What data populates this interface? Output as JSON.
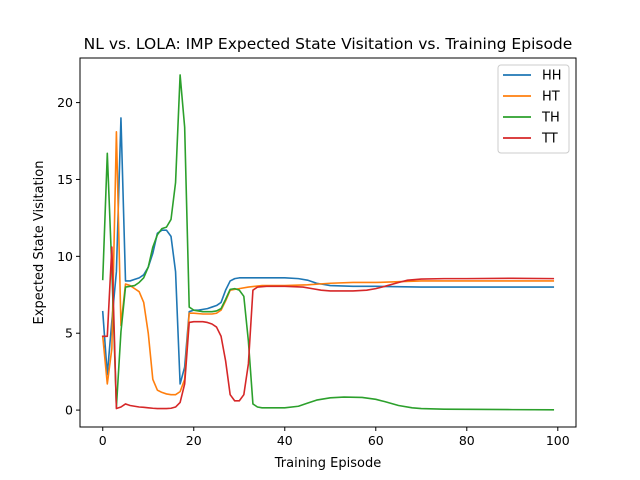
{
  "chart_data": {
    "type": "line",
    "title": "NL vs. LOLA: IMP Expected State Visitation vs. Training Episode",
    "xlabel": "Training Episode",
    "ylabel": "Expected State Visitation",
    "xlim": [
      -5,
      104
    ],
    "ylim": [
      -1.1,
      22.9
    ],
    "xticks": [
      0,
      20,
      40,
      60,
      80,
      100
    ],
    "yticks": [
      0,
      5,
      10,
      15,
      20
    ],
    "grid": false,
    "legend_position": "top-right",
    "series": [
      {
        "name": "HH",
        "color": "#1f77b4",
        "points": [
          [
            0,
            6.4
          ],
          [
            1,
            2.3
          ],
          [
            2,
            5.8
          ],
          [
            3,
            9.0
          ],
          [
            4,
            19.0
          ],
          [
            5,
            8.4
          ],
          [
            6,
            8.4
          ],
          [
            7,
            8.5
          ],
          [
            8,
            8.6
          ],
          [
            9,
            8.8
          ],
          [
            10,
            9.3
          ],
          [
            11,
            10.2
          ],
          [
            12,
            11.5
          ],
          [
            13,
            11.7
          ],
          [
            14,
            11.7
          ],
          [
            15,
            11.3
          ],
          [
            16,
            9.0
          ],
          [
            17,
            1.7
          ],
          [
            18,
            2.8
          ],
          [
            19,
            6.4
          ],
          [
            20,
            6.5
          ],
          [
            21,
            6.5
          ],
          [
            22,
            6.55
          ],
          [
            23,
            6.6
          ],
          [
            24,
            6.7
          ],
          [
            25,
            6.8
          ],
          [
            26,
            7.0
          ],
          [
            27,
            7.8
          ],
          [
            28,
            8.4
          ],
          [
            29,
            8.55
          ],
          [
            30,
            8.6
          ],
          [
            32,
            8.6
          ],
          [
            35,
            8.6
          ],
          [
            40,
            8.6
          ],
          [
            43,
            8.55
          ],
          [
            45,
            8.45
          ],
          [
            47,
            8.25
          ],
          [
            50,
            8.1
          ],
          [
            55,
            8.05
          ],
          [
            60,
            8.05
          ],
          [
            70,
            8.0
          ],
          [
            80,
            8.0
          ],
          [
            90,
            8.0
          ],
          [
            99,
            8.0
          ]
        ]
      },
      {
        "name": "HT",
        "color": "#ff7f0e",
        "points": [
          [
            0,
            4.8
          ],
          [
            1,
            1.7
          ],
          [
            2,
            4.0
          ],
          [
            3,
            18.1
          ],
          [
            4,
            5.5
          ],
          [
            5,
            8.2
          ],
          [
            6,
            8.1
          ],
          [
            7,
            7.9
          ],
          [
            8,
            7.7
          ],
          [
            9,
            7.0
          ],
          [
            10,
            5.0
          ],
          [
            11,
            2.0
          ],
          [
            12,
            1.3
          ],
          [
            13,
            1.15
          ],
          [
            14,
            1.05
          ],
          [
            15,
            1.0
          ],
          [
            16,
            1.0
          ],
          [
            17,
            1.2
          ],
          [
            18,
            2.0
          ],
          [
            19,
            6.3
          ],
          [
            20,
            6.3
          ],
          [
            22,
            6.25
          ],
          [
            24,
            6.25
          ],
          [
            25,
            6.3
          ],
          [
            26,
            6.5
          ],
          [
            27,
            7.1
          ],
          [
            28,
            7.8
          ],
          [
            29,
            7.85
          ],
          [
            30,
            7.9
          ],
          [
            32,
            8.0
          ],
          [
            35,
            8.1
          ],
          [
            40,
            8.1
          ],
          [
            45,
            8.15
          ],
          [
            50,
            8.25
          ],
          [
            55,
            8.3
          ],
          [
            60,
            8.3
          ],
          [
            65,
            8.35
          ],
          [
            70,
            8.4
          ],
          [
            80,
            8.4
          ],
          [
            90,
            8.4
          ],
          [
            99,
            8.4
          ]
        ]
      },
      {
        "name": "TH",
        "color": "#2ca02c",
        "points": [
          [
            0,
            8.5
          ],
          [
            1,
            16.7
          ],
          [
            2,
            9.2
          ],
          [
            3,
            0.2
          ],
          [
            4,
            5.1
          ],
          [
            5,
            8.0
          ],
          [
            6,
            8.05
          ],
          [
            7,
            8.1
          ],
          [
            8,
            8.3
          ],
          [
            9,
            8.6
          ],
          [
            10,
            9.3
          ],
          [
            11,
            10.6
          ],
          [
            12,
            11.4
          ],
          [
            13,
            11.8
          ],
          [
            14,
            11.9
          ],
          [
            15,
            12.4
          ],
          [
            16,
            14.8
          ],
          [
            17,
            21.8
          ],
          [
            18,
            18.4
          ],
          [
            19,
            6.7
          ],
          [
            20,
            6.5
          ],
          [
            22,
            6.4
          ],
          [
            24,
            6.4
          ],
          [
            25,
            6.45
          ],
          [
            26,
            6.6
          ],
          [
            27,
            7.2
          ],
          [
            28,
            7.85
          ],
          [
            29,
            7.9
          ],
          [
            30,
            7.8
          ],
          [
            31,
            7.4
          ],
          [
            32,
            4.5
          ],
          [
            33,
            0.4
          ],
          [
            34,
            0.2
          ],
          [
            35,
            0.15
          ],
          [
            40,
            0.15
          ],
          [
            43,
            0.25
          ],
          [
            45,
            0.45
          ],
          [
            47,
            0.65
          ],
          [
            50,
            0.8
          ],
          [
            53,
            0.85
          ],
          [
            57,
            0.82
          ],
          [
            60,
            0.7
          ],
          [
            62,
            0.55
          ],
          [
            65,
            0.3
          ],
          [
            68,
            0.15
          ],
          [
            70,
            0.1
          ],
          [
            75,
            0.06
          ],
          [
            80,
            0.05
          ],
          [
            90,
            0.03
          ],
          [
            99,
            0.02
          ]
        ]
      },
      {
        "name": "TT",
        "color": "#d62728",
        "points": [
          [
            0,
            4.8
          ],
          [
            1,
            4.8
          ],
          [
            2,
            10.6
          ],
          [
            3,
            0.1
          ],
          [
            4,
            0.2
          ],
          [
            5,
            0.4
          ],
          [
            6,
            0.3
          ],
          [
            7,
            0.25
          ],
          [
            8,
            0.2
          ],
          [
            9,
            0.18
          ],
          [
            10,
            0.15
          ],
          [
            11,
            0.12
          ],
          [
            12,
            0.1
          ],
          [
            13,
            0.1
          ],
          [
            14,
            0.1
          ],
          [
            15,
            0.12
          ],
          [
            16,
            0.2
          ],
          [
            17,
            0.5
          ],
          [
            18,
            1.7
          ],
          [
            19,
            5.7
          ],
          [
            20,
            5.75
          ],
          [
            21,
            5.75
          ],
          [
            22,
            5.75
          ],
          [
            23,
            5.7
          ],
          [
            24,
            5.6
          ],
          [
            25,
            5.4
          ],
          [
            26,
            4.8
          ],
          [
            27,
            3.2
          ],
          [
            28,
            1.0
          ],
          [
            29,
            0.6
          ],
          [
            30,
            0.6
          ],
          [
            31,
            1.0
          ],
          [
            32,
            3.0
          ],
          [
            33,
            7.8
          ],
          [
            34,
            8.0
          ],
          [
            36,
            8.05
          ],
          [
            40,
            8.05
          ],
          [
            44,
            8.0
          ],
          [
            46,
            7.9
          ],
          [
            48,
            7.8
          ],
          [
            50,
            7.75
          ],
          [
            55,
            7.75
          ],
          [
            58,
            7.8
          ],
          [
            60,
            7.9
          ],
          [
            62,
            8.05
          ],
          [
            65,
            8.3
          ],
          [
            67,
            8.45
          ],
          [
            70,
            8.52
          ],
          [
            75,
            8.55
          ],
          [
            80,
            8.55
          ],
          [
            90,
            8.57
          ],
          [
            99,
            8.55
          ]
        ]
      }
    ]
  }
}
